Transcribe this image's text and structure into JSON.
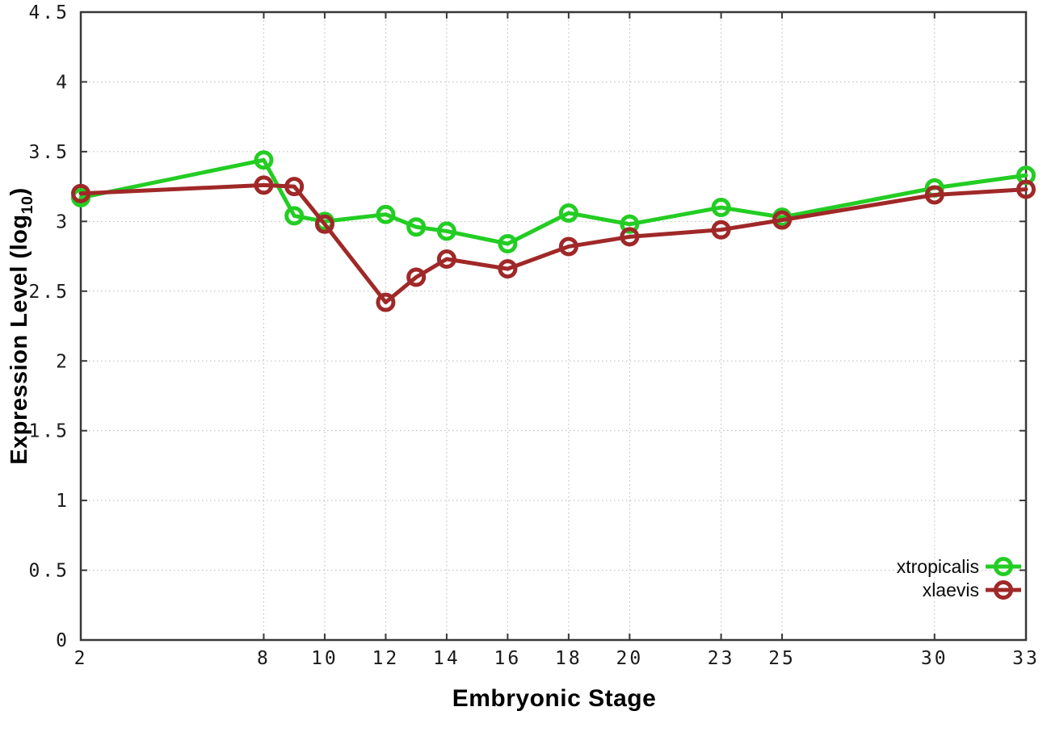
{
  "figure": {
    "xlabel": "Embryonic Stage",
    "ylabel_main": "Expression Level (log",
    "ylabel_sub": "10",
    "ylabel_close": ")"
  },
  "chart_data": {
    "type": "line",
    "title": "",
    "xlabel": "Embryonic Stage",
    "ylabel": "Expression Level (log10)",
    "x": [
      2,
      8,
      9,
      10,
      12,
      13,
      14,
      16,
      18,
      20,
      23,
      25,
      30,
      33
    ],
    "series": [
      {
        "name": "xtropicalis",
        "color": "#23cd23",
        "values": [
          3.17,
          3.44,
          3.04,
          3.0,
          3.05,
          2.96,
          2.93,
          2.84,
          3.06,
          2.98,
          3.1,
          3.03,
          3.24,
          3.33
        ]
      },
      {
        "name": "xlaevis",
        "color": "#a02828",
        "values": [
          3.2,
          3.26,
          3.25,
          2.98,
          2.42,
          2.6,
          2.73,
          2.66,
          2.82,
          2.89,
          2.94,
          3.01,
          3.19,
          3.23
        ]
      }
    ],
    "xlim": [
      2,
      33
    ],
    "ylim": [
      0,
      4.5
    ],
    "xticks": [
      2,
      8,
      10,
      12,
      14,
      16,
      18,
      20,
      23,
      25,
      30,
      33
    ],
    "yticks": [
      0,
      0.5,
      1,
      1.5,
      2,
      2.5,
      3,
      3.5,
      4,
      4.5
    ],
    "grid": true,
    "legend_position": "bottom-right-inside",
    "marker": "open-circle",
    "grid_color": "#b8b8b8",
    "frame_color": "#383838",
    "tick_text_color": "#1a1a1a"
  }
}
